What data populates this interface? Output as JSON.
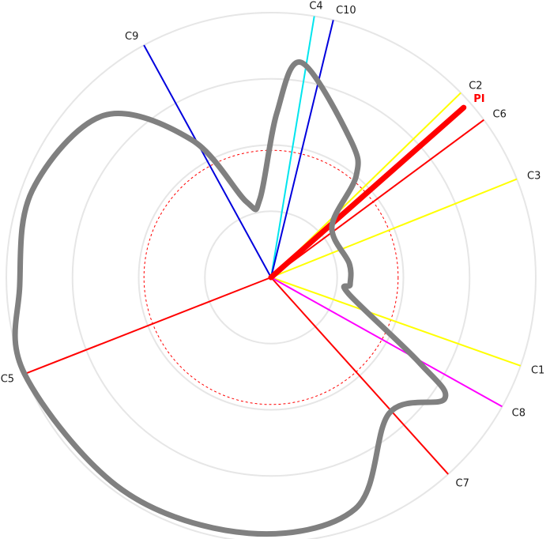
{
  "chart_data": {
    "type": "polar",
    "title": "",
    "angle_convention": "degrees counter-clockwise from east",
    "radial_range": [
      0,
      1
    ],
    "rings": [
      0.25,
      0.5,
      0.75,
      1.0
    ],
    "reference_ring": {
      "radius": 0.48,
      "color": "#ff0000",
      "style": "dashed"
    },
    "spokes": [
      {
        "label": "C1",
        "angle": -19.5,
        "radius": 1.0,
        "color": "#ffff00"
      },
      {
        "label": "C2",
        "angle": 44.2,
        "radius": 1.0,
        "color": "#ffff00"
      },
      {
        "label": "C3",
        "angle": 21.8,
        "radius": 1.0,
        "color": "#ffff00"
      },
      {
        "label": "C4",
        "angle": 80.6,
        "radius": 1.0,
        "color": "#00e5ee"
      },
      {
        "label": "C5",
        "angle": -158.6,
        "radius": 1.0,
        "color": "#ff0000"
      },
      {
        "label": "C6",
        "angle": 36.5,
        "radius": 1.0,
        "color": "#ff0000"
      },
      {
        "label": "C7",
        "angle": -48.0,
        "radius": 1.0,
        "color": "#ff0000"
      },
      {
        "label": "C8",
        "angle": -29.2,
        "radius": 1.0,
        "color": "#ff00ff"
      },
      {
        "label": "C9",
        "angle": 118.7,
        "radius": 1.0,
        "color": "#0000dd"
      },
      {
        "label": "C10",
        "angle": 76.4,
        "radius": 1.0,
        "color": "#0000dd"
      }
    ],
    "pi_vector": {
      "label": "PI",
      "angle": 41.4,
      "radius": 0.97,
      "color": "#ff0000"
    },
    "envelope": {
      "color": "#808080",
      "points": [
        [
          82.0,
          0.82
        ],
        [
          60.0,
          0.6
        ],
        [
          50.0,
          0.5
        ],
        [
          40.0,
          0.3
        ],
        [
          10.0,
          0.3
        ],
        [
          -5.0,
          0.3
        ],
        [
          -12.0,
          0.3
        ],
        [
          -30.0,
          0.65
        ],
        [
          -35.0,
          0.8
        ],
        [
          -49.0,
          0.68
        ],
        [
          -70.0,
          0.93
        ],
        [
          -95.0,
          0.97
        ],
        [
          -125.0,
          0.98
        ],
        [
          -158.6,
          1.0
        ],
        [
          -178.0,
          0.95
        ],
        [
          160.0,
          0.96
        ],
        [
          136.0,
          0.88
        ],
        [
          120.0,
          0.6
        ],
        [
          108.0,
          0.3
        ],
        [
          98.0,
          0.3
        ],
        [
          88.0,
          0.62
        ],
        [
          82.0,
          0.82
        ]
      ]
    }
  }
}
